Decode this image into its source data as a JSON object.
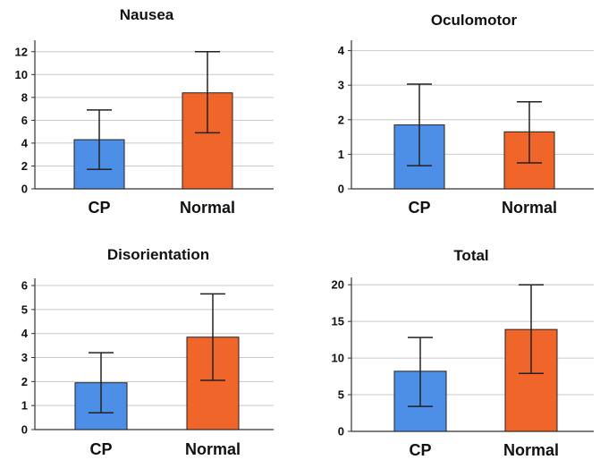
{
  "chart_data": [
    {
      "type": "bar",
      "title": "Nausea",
      "categories": [
        "CP",
        "Normal"
      ],
      "values": [
        4.3,
        8.4
      ],
      "error_low": [
        1.7,
        4.9
      ],
      "error_high": [
        6.9,
        12.0
      ],
      "yticks": [
        "0",
        "2",
        "4",
        "6",
        "8",
        "10",
        "12"
      ],
      "ylim": [
        0,
        13
      ],
      "grid": true,
      "colors": [
        "#4d8fe6",
        "#f0652a"
      ]
    },
    {
      "type": "bar",
      "title": "Oculomotor",
      "categories": [
        "CP",
        "Normal"
      ],
      "values": [
        1.85,
        1.65
      ],
      "error_low": [
        0.67,
        0.75
      ],
      "error_high": [
        3.03,
        2.52
      ],
      "yticks": [
        "0",
        "1",
        "2",
        "3",
        "4"
      ],
      "ylim": [
        0,
        4.3
      ],
      "grid": true,
      "colors": [
        "#4d8fe6",
        "#f0652a"
      ]
    },
    {
      "type": "bar",
      "title": "Disorientation",
      "categories": [
        "CP",
        "Normal"
      ],
      "values": [
        1.95,
        3.85
      ],
      "error_low": [
        0.7,
        2.05
      ],
      "error_high": [
        3.2,
        5.65
      ],
      "yticks": [
        "0",
        "1",
        "2",
        "3",
        "4",
        "5",
        "6"
      ],
      "ylim": [
        0,
        6.3
      ],
      "grid": true,
      "colors": [
        "#4d8fe6",
        "#f0652a"
      ]
    },
    {
      "type": "bar",
      "title": "Total",
      "categories": [
        "CP",
        "Normal"
      ],
      "values": [
        8.2,
        13.9
      ],
      "error_low": [
        3.4,
        7.9
      ],
      "error_high": [
        12.8,
        20.0
      ],
      "yticks": [
        "0",
        "5",
        "10",
        "15",
        "20"
      ],
      "ylim": [
        0,
        21
      ],
      "grid": true,
      "colors": [
        "#4d8fe6",
        "#f0652a"
      ]
    }
  ]
}
